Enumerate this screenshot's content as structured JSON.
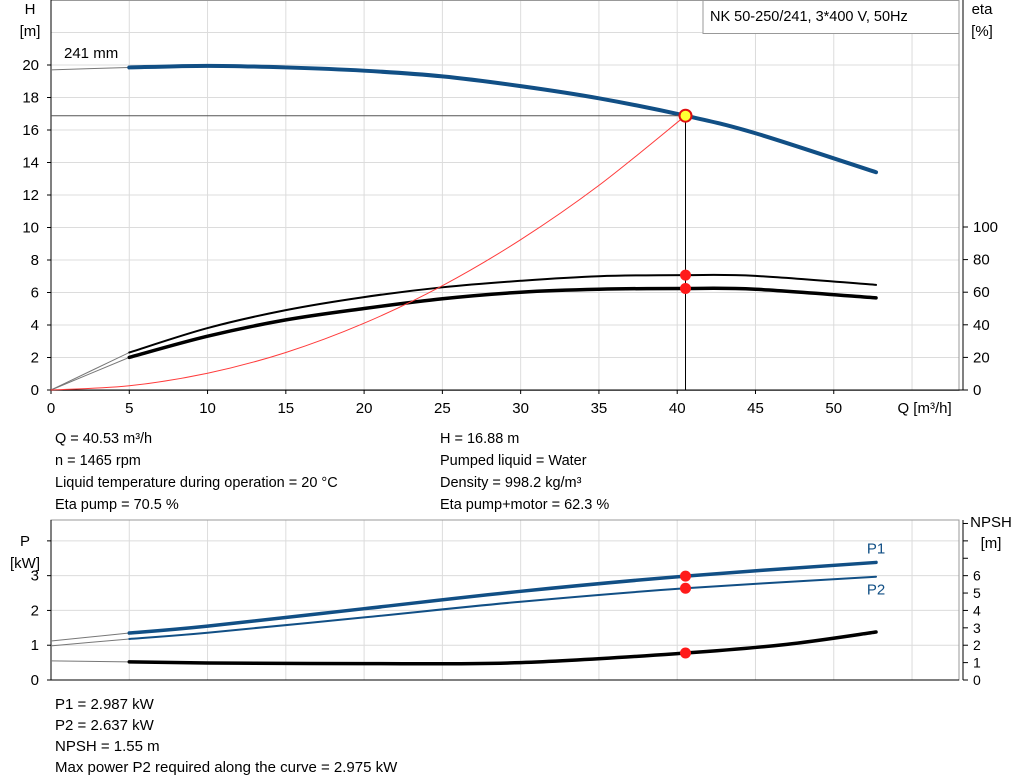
{
  "chart_data": [
    {
      "type": "line",
      "legend_box": "NK 50-250/241, 3*400 V, 50Hz",
      "curve_label": "241 mm",
      "xlabel": "Q [m³/h]",
      "ylabel_left": [
        "H",
        "[m]"
      ],
      "ylabel_right": [
        "eta",
        "[%]"
      ],
      "xlim": [
        0,
        58
      ],
      "ylim_left": [
        0,
        24
      ],
      "ylim_right": [
        0,
        100
      ],
      "x_ticks": [
        "0",
        "5",
        "10",
        "15",
        "20",
        "25",
        "30",
        "35",
        "40",
        "45",
        "50"
      ],
      "y_ticks_left": [
        "0",
        "2",
        "4",
        "6",
        "8",
        "10",
        "12",
        "14",
        "16",
        "18",
        "20"
      ],
      "y_ticks_right": [
        "0",
        "20",
        "40",
        "60",
        "80",
        "100"
      ],
      "grid": true,
      "series": [
        {
          "key": "head",
          "axis": "left",
          "color": "#114f85",
          "x": [
            5,
            10,
            15,
            20,
            25,
            30,
            35,
            40.53,
            45,
            52.7
          ],
          "y": [
            19.85,
            19.95,
            19.85,
            19.65,
            19.3,
            18.7,
            17.95,
            16.88,
            15.8,
            13.4
          ],
          "extension": {
            "x": [
              0,
              5
            ],
            "y": [
              19.7,
              19.85
            ]
          }
        },
        {
          "key": "eta_pump",
          "axis": "right",
          "color": "#000000",
          "x": [
            5,
            10,
            15,
            20,
            25,
            30,
            35,
            40.53,
            45,
            52.7
          ],
          "y": [
            23,
            38,
            49,
            57,
            63,
            67,
            69.8,
            70.5,
            70,
            64.5
          ],
          "extension": {
            "x": [
              0,
              5
            ],
            "y": [
              0,
              23
            ]
          }
        },
        {
          "key": "eta_pump_motor",
          "axis": "right",
          "color": "#000000",
          "x": [
            5,
            10,
            15,
            20,
            25,
            30,
            35,
            40.53,
            45,
            52.7
          ],
          "y": [
            20,
            33,
            43,
            50,
            56,
            60,
            61.8,
            62.3,
            61.8,
            56.5
          ],
          "extension": {
            "x": [
              0,
              5
            ],
            "y": [
              0,
              20
            ]
          }
        },
        {
          "key": "system_curve",
          "axis": "left",
          "color": "#ff3b3b",
          "x": [
            0,
            5,
            10,
            15,
            20,
            25,
            30,
            35,
            40.53
          ],
          "y": [
            0,
            0.26,
            1.03,
            2.31,
            4.11,
            6.42,
            9.25,
            12.59,
            16.88
          ]
        }
      ],
      "operating_point": {
        "Q": 40.53,
        "H": 16.88,
        "eta_pump": 70.5,
        "eta_pump_motor": 62.3
      }
    },
    {
      "type": "line",
      "xlim": [
        0,
        58
      ],
      "ylabel_left": [
        "P",
        "[kW]"
      ],
      "ylabel_right": [
        "NPSH",
        "[m]"
      ],
      "ylim_left": [
        0,
        4.6
      ],
      "ylim_right": [
        0,
        9.2
      ],
      "y_ticks_left": [
        "0",
        "1",
        "2",
        "3"
      ],
      "y_ticks_right": [
        "0",
        "1",
        "2",
        "3",
        "4",
        "5",
        "6",
        "",
        "",
        ""
      ],
      "grid": true,
      "series": [
        {
          "key": "P1",
          "name": "P1",
          "axis": "left",
          "color": "#114f85",
          "x": [
            5,
            10,
            20,
            30,
            40.53,
            52.7
          ],
          "y": [
            1.35,
            1.55,
            2.05,
            2.55,
            2.987,
            3.38
          ],
          "extension": {
            "x": [
              0,
              5
            ],
            "y": [
              1.12,
              1.35
            ]
          }
        },
        {
          "key": "P2",
          "name": "P2",
          "axis": "left",
          "color": "#114f85",
          "x": [
            5,
            10,
            20,
            30,
            40.53,
            52.7
          ],
          "y": [
            1.18,
            1.36,
            1.8,
            2.25,
            2.637,
            2.97
          ],
          "extension": {
            "x": [
              0,
              5
            ],
            "y": [
              0.98,
              1.18
            ]
          }
        },
        {
          "key": "NPSH",
          "axis": "right",
          "color": "#000000",
          "x": [
            5,
            10,
            20,
            30,
            40.53,
            47,
            52.7
          ],
          "y": [
            1.04,
            0.98,
            0.94,
            1.0,
            1.55,
            2.05,
            2.76
          ],
          "extension": {
            "x": [
              0,
              5
            ],
            "y": [
              1.1,
              1.04
            ]
          }
        }
      ],
      "operating_point": {
        "Q": 40.53,
        "P1": 2.987,
        "P2": 2.637,
        "NPSH": 1.55
      }
    }
  ],
  "info_top": {
    "left": [
      "Q = 40.53 m³/h",
      "n = 1465 rpm",
      "Liquid temperature during operation = 20 °C",
      "Eta pump = 70.5 %"
    ],
    "right": [
      "H = 16.88 m",
      "Pumped liquid = Water",
      "Density = 998.2 kg/m³",
      "Eta pump+motor = 62.3 %"
    ]
  },
  "info_bottom": [
    "P1 = 2.987 kW",
    "P2 = 2.637 kW",
    "NPSH = 1.55 m",
    "Max power P2 required along the curve = 2.975 kW"
  ]
}
